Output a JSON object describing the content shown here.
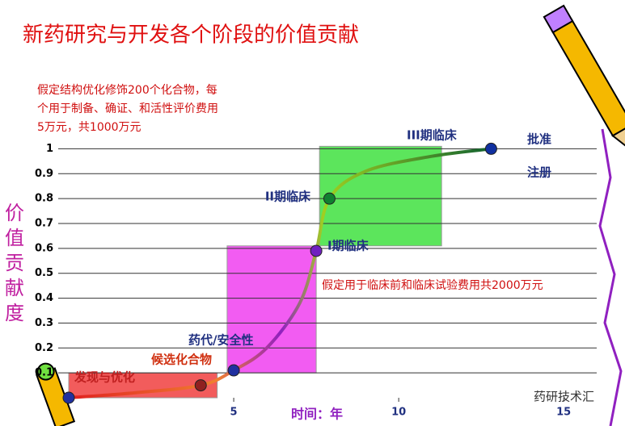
{
  "chart_data": {
    "type": "line",
    "title": "新药研究与开发各个阶段的价值贡献",
    "notes": [
      "假定结构优化修饰200个化合物，每",
      "个用于制备、确证、和活性评价费用",
      "5万元，共1000万元"
    ],
    "note2": "假定用于临床前和临床试验费用共2000万元",
    "ylabel": "价值贡献度",
    "xlabel": "时间：年",
    "xlim": [
      0,
      16
    ],
    "ylim": [
      0,
      1.05
    ],
    "xticks": [
      5,
      10,
      15
    ],
    "yticks": [
      0.1,
      0.2,
      0.3,
      0.4,
      0.5,
      0.6,
      0.7,
      0.8,
      0.9,
      1
    ],
    "grid": true,
    "x": [
      0,
      2,
      4,
      5,
      6,
      7,
      7.5,
      7.9,
      9,
      11,
      12.8
    ],
    "series": [
      {
        "values": [
          0,
          0.02,
          0.05,
          0.11,
          0.2,
          0.38,
          0.59,
          0.8,
          0.91,
          0.97,
          1.0
        ]
      }
    ],
    "regions": [
      {
        "x0": 0,
        "x1": 4.5,
        "y0": 0,
        "y1": 0.1,
        "color": "#f04040"
      },
      {
        "x0": 4.8,
        "x1": 7.5,
        "y0": 0.1,
        "y1": 0.61,
        "color": "#f040f0"
      },
      {
        "x0": 7.6,
        "x1": 11.3,
        "y0": 0.61,
        "y1": 1.01,
        "color": "#40e040"
      }
    ],
    "annotations": [
      "发现与优化",
      "候选化合物",
      "药代/安全性",
      "I期临床",
      "II期临床",
      "III期临床",
      "批准",
      "注册"
    ],
    "watermark": "药研技术汇"
  }
}
